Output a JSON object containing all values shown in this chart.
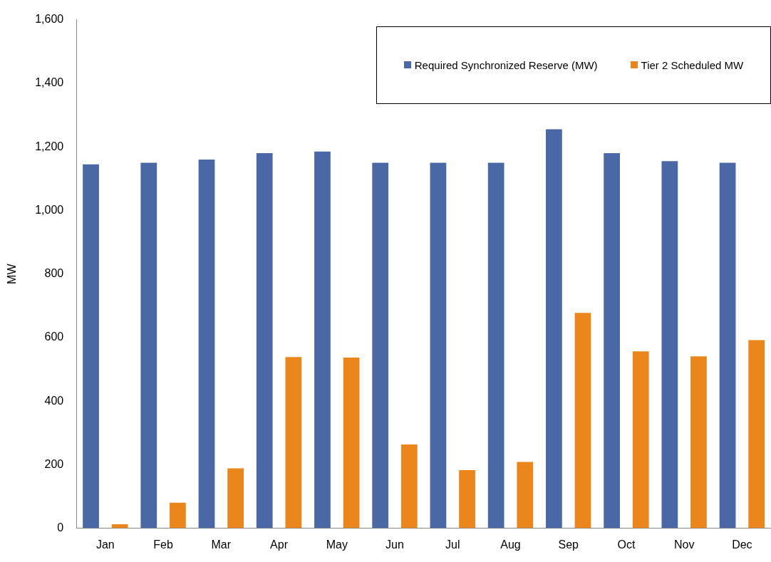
{
  "chart_data": {
    "type": "bar",
    "ylabel": "MW",
    "categories": [
      "Jan",
      "Feb",
      "Mar",
      "Apr",
      "May",
      "Jun",
      "Jul",
      "Aug",
      "Sep",
      "Oct",
      "Nov",
      "Dec"
    ],
    "series": [
      {
        "name": "Required Synchronized Reserve (MW)",
        "color": "#4a68a6",
        "values": [
          1145,
          1150,
          1160,
          1180,
          1185,
          1150,
          1150,
          1150,
          1255,
          1180,
          1155,
          1150
        ]
      },
      {
        "name": "Tier 2 Scheduled MW",
        "color": "#eb861c",
        "values": [
          13,
          81,
          189,
          539,
          537,
          264,
          183,
          209,
          678,
          557,
          541,
          592
        ]
      }
    ],
    "ylim": [
      0,
      1600
    ],
    "yticks": [
      0,
      200,
      400,
      600,
      800,
      {
        "value": 1000,
        "label": "1,000"
      },
      {
        "value": 1200,
        "label": "1,200"
      },
      {
        "value": 1400,
        "label": "1,400"
      },
      {
        "value": 1600,
        "label": "1,600"
      }
    ],
    "grid": false,
    "legend": "top right"
  }
}
